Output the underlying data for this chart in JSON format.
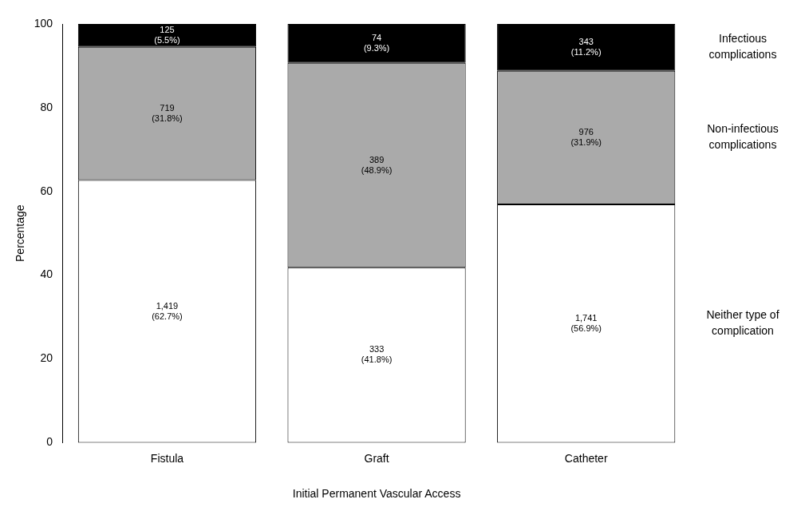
{
  "chart_data": {
    "type": "bar",
    "stacked": true,
    "xlabel": "Initial Permanent Vascular Access",
    "ylabel": "Percentage",
    "categories": [
      "Fistula",
      "Graft",
      "Catheter"
    ],
    "ylim": [
      0,
      100
    ],
    "yticks": [
      0,
      20,
      40,
      60,
      80,
      100
    ],
    "grid": false,
    "legend": false,
    "series": [
      {
        "name": "Neither type of complication",
        "color": "#ffffff",
        "values": [
          62.7,
          41.8,
          56.9
        ],
        "value_labels": [
          "1,419 (62.7%)",
          "333 (41.8%)",
          "1,741 (56.9%)"
        ]
      },
      {
        "name": "Non-infectious complications",
        "color": "#aaaaaa",
        "values": [
          31.8,
          48.9,
          31.9
        ],
        "value_labels": [
          "719 (31.8%)",
          "389 (48.9%)",
          "976 (31.9%)"
        ]
      },
      {
        "name": "Infectious complications",
        "color": "#000000",
        "values": [
          5.5,
          9.3,
          11.2
        ],
        "value_labels": [
          "125 (5.5%)",
          "74 (9.3%)",
          "343 (11.2%)"
        ]
      }
    ]
  }
}
